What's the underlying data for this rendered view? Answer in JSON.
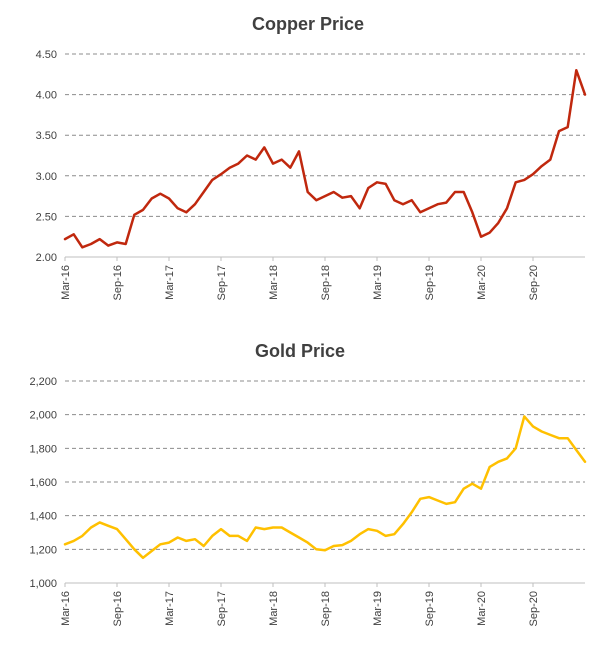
{
  "chart_data": [
    {
      "type": "line",
      "title": "Copper Price",
      "xlabel": "",
      "ylabel": "",
      "ylim": [
        2.0,
        4.5
      ],
      "y_ticks": [
        "2.00",
        "2.50",
        "3.00",
        "3.50",
        "4.00",
        "4.50"
      ],
      "x_ticks": [
        "Mar-16",
        "Sep-16",
        "Mar-17",
        "Sep-17",
        "Mar-18",
        "Sep-18",
        "Mar-19",
        "Sep-19",
        "Mar-20",
        "Sep-20"
      ],
      "grid": true,
      "color": "#c0280e",
      "series": [
        {
          "x": [
            "2016-03",
            "2016-04",
            "2016-05",
            "2016-06",
            "2016-07",
            "2016-08",
            "2016-09",
            "2016-10",
            "2016-11",
            "2016-12",
            "2017-01",
            "2017-02",
            "2017-03",
            "2017-04",
            "2017-05",
            "2017-06",
            "2017-07",
            "2017-08",
            "2017-09",
            "2017-10",
            "2017-11",
            "2017-12",
            "2018-01",
            "2018-02",
            "2018-03",
            "2018-04",
            "2018-05",
            "2018-06",
            "2018-07",
            "2018-08",
            "2018-09",
            "2018-10",
            "2018-11",
            "2018-12",
            "2019-01",
            "2019-02",
            "2019-03",
            "2019-04",
            "2019-05",
            "2019-06",
            "2019-07",
            "2019-08",
            "2019-09",
            "2019-10",
            "2019-11",
            "2019-12",
            "2020-01",
            "2020-02",
            "2020-03",
            "2020-04",
            "2020-05",
            "2020-06",
            "2020-07",
            "2020-08",
            "2020-09",
            "2020-10",
            "2020-11",
            "2020-12",
            "2021-01",
            "2021-02",
            "2021-03"
          ],
          "values": [
            2.22,
            2.28,
            2.12,
            2.16,
            2.22,
            2.14,
            2.18,
            2.16,
            2.52,
            2.58,
            2.72,
            2.78,
            2.72,
            2.6,
            2.55,
            2.65,
            2.8,
            2.95,
            3.02,
            3.1,
            3.15,
            3.25,
            3.2,
            3.35,
            3.15,
            3.2,
            3.1,
            3.3,
            2.8,
            2.7,
            2.75,
            2.8,
            2.73,
            2.75,
            2.6,
            2.85,
            2.92,
            2.9,
            2.7,
            2.65,
            2.7,
            2.55,
            2.6,
            2.65,
            2.67,
            2.8,
            2.8,
            2.55,
            2.25,
            2.3,
            2.42,
            2.6,
            2.92,
            2.95,
            3.02,
            3.12,
            3.2,
            3.55,
            3.6,
            4.3,
            4.0
          ]
        }
      ]
    },
    {
      "type": "line",
      "title": "Gold Price",
      "xlabel": "",
      "ylabel": "",
      "ylim": [
        1000,
        2200
      ],
      "y_ticks": [
        "1,000",
        "1,200",
        "1,400",
        "1,600",
        "1,800",
        "2,000",
        "2,200"
      ],
      "x_ticks": [
        "Mar-16",
        "Sep-16",
        "Mar-17",
        "Sep-17",
        "Mar-18",
        "Sep-18",
        "Mar-19",
        "Sep-19",
        "Mar-20",
        "Sep-20"
      ],
      "grid": true,
      "color": "#ffc000",
      "series": [
        {
          "x": [
            "2016-03",
            "2016-04",
            "2016-05",
            "2016-06",
            "2016-07",
            "2016-08",
            "2016-09",
            "2016-10",
            "2016-11",
            "2016-12",
            "2017-01",
            "2017-02",
            "2017-03",
            "2017-04",
            "2017-05",
            "2017-06",
            "2017-07",
            "2017-08",
            "2017-09",
            "2017-10",
            "2017-11",
            "2017-12",
            "2018-01",
            "2018-02",
            "2018-03",
            "2018-04",
            "2018-05",
            "2018-06",
            "2018-07",
            "2018-08",
            "2018-09",
            "2018-10",
            "2018-11",
            "2018-12",
            "2019-01",
            "2019-02",
            "2019-03",
            "2019-04",
            "2019-05",
            "2019-06",
            "2019-07",
            "2019-08",
            "2019-09",
            "2019-10",
            "2019-11",
            "2019-12",
            "2020-01",
            "2020-02",
            "2020-03",
            "2020-04",
            "2020-05",
            "2020-06",
            "2020-07",
            "2020-08",
            "2020-09",
            "2020-10",
            "2020-11",
            "2020-12",
            "2021-01",
            "2021-02",
            "2021-03"
          ],
          "values": [
            1230,
            1250,
            1280,
            1330,
            1360,
            1340,
            1320,
            1260,
            1200,
            1150,
            1190,
            1230,
            1240,
            1270,
            1250,
            1260,
            1220,
            1280,
            1320,
            1280,
            1280,
            1250,
            1330,
            1320,
            1330,
            1330,
            1300,
            1270,
            1240,
            1200,
            1195,
            1220,
            1225,
            1250,
            1290,
            1320,
            1310,
            1280,
            1290,
            1350,
            1420,
            1500,
            1510,
            1490,
            1470,
            1480,
            1560,
            1590,
            1560,
            1690,
            1720,
            1740,
            1800,
            1990,
            1930,
            1900,
            1880,
            1860,
            1860,
            1790,
            1720
          ]
        }
      ]
    }
  ]
}
